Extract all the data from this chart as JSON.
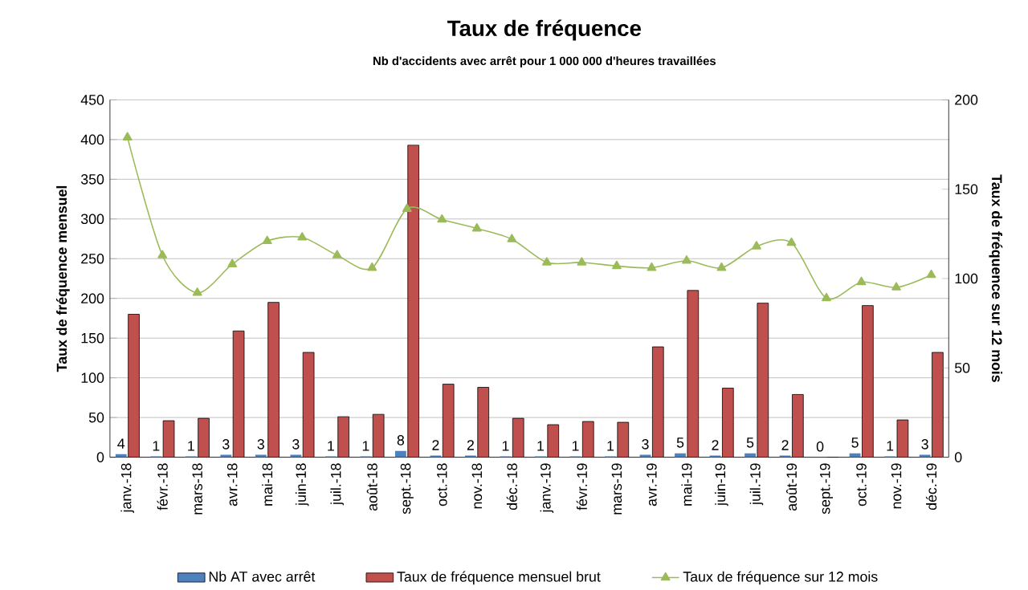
{
  "chart_data": {
    "type": "bar",
    "title": "Taux de fréquence",
    "subtitle": "Nb d'accidents avec arrêt pour 1 000 000 d'heures travaillées",
    "ylabel": "Taux de fréquence mensuel",
    "y2label": "Taux de fréquence sur 12 mois",
    "categories": [
      "janv.-18",
      "févr.-18",
      "mars-18",
      "avr.-18",
      "mai-18",
      "juin-18",
      "juil.-18",
      "août-18",
      "sept.-18",
      "oct.-18",
      "nov.-18",
      "déc.-18",
      "janv.-19",
      "févr.-19",
      "mars-19",
      "avr.-19",
      "mai-19",
      "juin-19",
      "juil.-19",
      "août-19",
      "sept.-19",
      "oct.-19",
      "nov.-19",
      "déc.-19"
    ],
    "series": [
      {
        "name": "Nb AT avec arrêt",
        "color": "#4f81bd",
        "values": [
          4,
          1,
          1,
          3,
          3,
          3,
          1,
          1,
          8,
          2,
          2,
          1,
          1,
          1,
          1,
          3,
          5,
          2,
          5,
          2,
          0,
          5,
          1,
          3
        ],
        "value_labels": [
          "4",
          "1",
          "1",
          "3",
          "3",
          "3",
          "1",
          "1",
          "8",
          "2",
          "2",
          "1",
          "1",
          "1",
          "1",
          "3",
          "5",
          "2",
          "5",
          "2",
          "0",
          "5",
          "1",
          "3"
        ]
      },
      {
        "name": "Taux de fréquence mensuel brut",
        "color": "#c0504d",
        "values": [
          180,
          46,
          49,
          159,
          195,
          132,
          51,
          54,
          393,
          92,
          88,
          49,
          41,
          45,
          44,
          139,
          210,
          87,
          194,
          79,
          0,
          191,
          47,
          132
        ]
      },
      {
        "name": "Taux de fréquence sur 12 mois",
        "type": "line",
        "axis": "y2",
        "color": "#9bbb59",
        "marker": "triangle",
        "values": [
          179,
          113,
          92,
          108,
          121,
          123,
          113,
          106,
          139,
          133,
          128,
          122,
          109,
          109,
          107,
          106,
          110,
          106,
          118,
          120,
          89,
          98,
          95,
          102
        ]
      }
    ],
    "ylim": [
      0,
      450
    ],
    "yticks": [
      0,
      50,
      100,
      150,
      200,
      250,
      300,
      350,
      400,
      450
    ],
    "y2lim": [
      0,
      200
    ],
    "y2ticks": [
      0,
      50,
      100,
      150,
      200
    ],
    "grid": "y",
    "legend": "bottom"
  }
}
